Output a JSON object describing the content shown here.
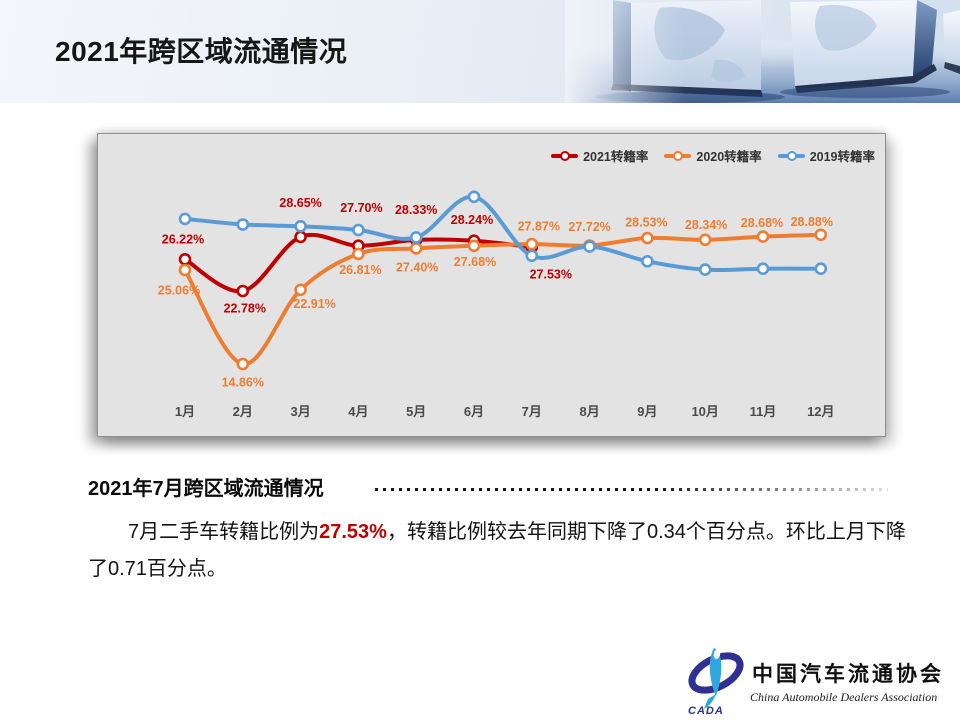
{
  "slide": {
    "title": "2021年跨区域流通情况"
  },
  "chart_data": {
    "type": "line",
    "title": "",
    "grid": false,
    "legend_position": "top-right",
    "categories": [
      "1月",
      "2月",
      "3月",
      "4月",
      "5月",
      "6月",
      "7月",
      "8月",
      "9月",
      "10月",
      "11月",
      "12月"
    ],
    "ylim": [
      13,
      35
    ],
    "series": [
      {
        "name": "2021转籍率",
        "color": "#C00000",
        "values": [
          26.22,
          22.78,
          28.65,
          27.7,
          28.33,
          28.24,
          27.53
        ],
        "show_labels": true,
        "label_offsets": [
          [
            -2,
            -19
          ],
          [
            2,
            18
          ],
          [
            0,
            -33
          ],
          [
            3,
            -37
          ],
          [
            0,
            -29
          ],
          [
            -2,
            -20
          ],
          [
            19,
            28
          ]
        ]
      },
      {
        "name": "2020转籍率",
        "color": "#ED7D31",
        "values": [
          25.06,
          14.86,
          22.91,
          26.81,
          27.4,
          27.68,
          27.87,
          27.72,
          28.53,
          28.34,
          28.68,
          28.88
        ],
        "show_labels": true,
        "label_offsets": [
          [
            -6,
            21
          ],
          [
            0,
            19
          ],
          [
            14,
            15
          ],
          [
            2,
            17
          ],
          [
            1,
            20
          ],
          [
            1,
            17
          ],
          [
            7,
            -17
          ],
          [
            0,
            -18
          ],
          [
            -1,
            -15
          ],
          [
            1,
            -14
          ],
          [
            -1,
            -13
          ],
          [
            -9,
            -12
          ]
        ]
      },
      {
        "name": "2019转籍率",
        "color": "#5B9BD5",
        "values": [
          30.6,
          30.0,
          29.8,
          29.4,
          28.6,
          33.0,
          26.6,
          27.6,
          26.0,
          25.1,
          25.2,
          25.2
        ],
        "show_labels": false,
        "label_offsets": []
      }
    ]
  },
  "section": {
    "heading": "2021年7月跨区域流通情况"
  },
  "paragraph": {
    "part1": "7月二手车转籍比例为",
    "highlight": "27.53%",
    "part2": "，转籍比例较去年同期下降了0.34个百分点。环比上月下降了0.71百分点。"
  },
  "logo": {
    "badge": "CADA",
    "name_cn": "中国汽车流通协会",
    "name_en": "China Automobile Dealers Association"
  },
  "colors": {
    "red": "#C00000",
    "orange": "#ED7D31",
    "blue": "#5B9BD5"
  }
}
